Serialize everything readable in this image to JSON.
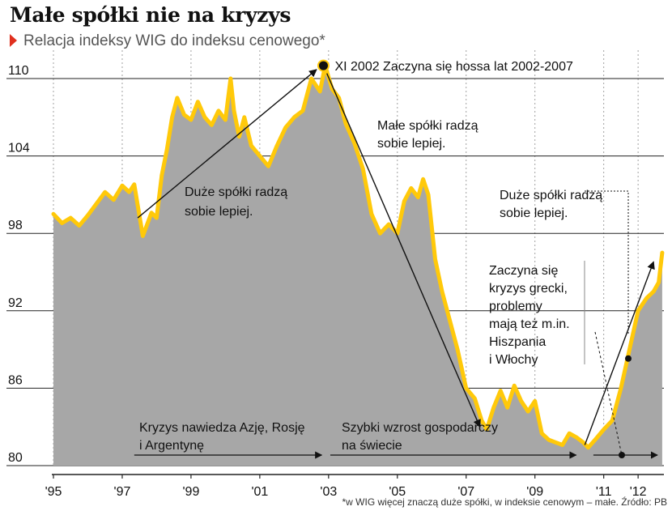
{
  "title": "Małe spółki nie na kryzys",
  "subtitle": "Relacja indeksy WIG do indeksu cenowego*",
  "footnote": "*w WIG więcej znaczą duże spółki, w indeksie cenowym – małe. Źródło: PB",
  "colors": {
    "line": "#ffc90a",
    "area": "#a7a7a7",
    "grid": "#a0a0a0",
    "text": "#111111",
    "accent": "#e0301e"
  },
  "chart_data": {
    "type": "area",
    "title": "Małe spółki nie na kryzys",
    "subtitle": "Relacja indeksy WIG do indeksu cenowego*",
    "xlabel": "",
    "ylabel": "",
    "ylim": [
      80,
      112
    ],
    "xlim": [
      1995,
      2012.75
    ],
    "y_ticks": [
      80,
      86,
      92,
      98,
      104,
      110
    ],
    "x_ticks": [
      {
        "value": 1995,
        "label": "'95"
      },
      {
        "value": 1997,
        "label": "'97"
      },
      {
        "value": 1999,
        "label": "'99"
      },
      {
        "value": 2001,
        "label": "'01"
      },
      {
        "value": 2003,
        "label": "'03"
      },
      {
        "value": 2005,
        "label": "'05"
      },
      {
        "value": 2007,
        "label": "'07"
      },
      {
        "value": 2009,
        "label": "'09"
      },
      {
        "value": 2011,
        "label": "'11"
      },
      {
        "value": 2012,
        "label": "'12"
      }
    ],
    "grid": "vertical dashed",
    "series": [
      {
        "x": [
          1995.0,
          1995.25,
          1995.5,
          1995.75,
          1996.0,
          1996.25,
          1996.5,
          1996.75,
          1997.0,
          1997.2,
          1997.35,
          1997.6,
          1997.85,
          1998.0,
          1998.15,
          1998.3,
          1998.45,
          1998.6,
          1998.8,
          1999.0,
          1999.2,
          1999.4,
          1999.6,
          1999.8,
          2000.0,
          2000.15,
          2000.25,
          2000.4,
          2000.55,
          2000.75,
          2001.0,
          2001.25,
          2001.5,
          2001.75,
          2002.0,
          2002.25,
          2002.5,
          2002.75,
          2002.9,
          2003.1,
          2003.3,
          2003.5,
          2003.75,
          2004.0,
          2004.25,
          2004.5,
          2004.75,
          2005.0,
          2005.2,
          2005.4,
          2005.6,
          2005.75,
          2005.9,
          2006.1,
          2006.3,
          2006.5,
          2006.75,
          2007.0,
          2007.25,
          2007.45,
          2007.6,
          2007.8,
          2008.0,
          2008.2,
          2008.4,
          2008.6,
          2008.8,
          2009.0,
          2009.2,
          2009.4,
          2009.6,
          2009.8,
          2010.0,
          2010.2,
          2010.4,
          2010.55,
          2010.75,
          2011.0,
          2011.25,
          2011.5,
          2011.75,
          2012.0,
          2012.25,
          2012.45,
          2012.6,
          2012.7
        ],
        "values": [
          99.5,
          98.8,
          99.2,
          98.6,
          99.4,
          100.3,
          101.2,
          100.6,
          101.7,
          101.2,
          101.8,
          97.8,
          99.6,
          99.2,
          102.5,
          104.5,
          107.0,
          108.5,
          107.2,
          106.8,
          108.2,
          107.0,
          106.4,
          107.5,
          106.8,
          110.0,
          107.5,
          105.5,
          107.0,
          104.8,
          104.0,
          103.2,
          104.8,
          106.2,
          107.0,
          107.5,
          110.0,
          109.0,
          111.0,
          109.2,
          108.5,
          106.5,
          105.0,
          103.0,
          99.5,
          98.0,
          98.7,
          98.0,
          100.5,
          101.5,
          100.8,
          102.2,
          101.0,
          96.0,
          93.5,
          91.5,
          89.0,
          86.0,
          85.2,
          83.5,
          82.8,
          84.5,
          85.8,
          84.5,
          86.2,
          85.0,
          84.2,
          85.0,
          82.5,
          82.0,
          81.8,
          81.6,
          82.5,
          82.2,
          81.8,
          81.4,
          82.0,
          82.8,
          83.5,
          86.0,
          89.0,
          92.0,
          93.0,
          93.5,
          94.2,
          96.5
        ]
      }
    ],
    "annotations": [
      {
        "text": "XI 2002 Zaczyna się hossa lat 2002-2007",
        "x": 2002.85,
        "y": 111.0
      },
      {
        "text": "Małe spółki radzą sobie lepiej.",
        "arrow_from": [
          2002.85,
          111.0
        ],
        "arrow_to": [
          2007.4,
          83.0
        ]
      },
      {
        "text": "Duże spółki radzą sobie lepiej.",
        "arrow_from": [
          1997.45,
          99.2
        ],
        "arrow_to": [
          2002.65,
          110.7
        ]
      },
      {
        "text": "Duże spółki radzą sobie lepiej.",
        "arrow_from": [
          2010.45,
          81.6
        ],
        "arrow_to": [
          2012.45,
          95.8
        ]
      },
      {
        "text": "Zaczyna się kryzys grecki, problemy mają też m.in. Hiszpania i Włochy"
      },
      {
        "text": "Kryzys nawiedza Azję, Rosję i Argentynę",
        "span": [
          1997.35,
          2002.85
        ]
      },
      {
        "text": "Szybki wzrost gospodarczy na świecie",
        "span": [
          2003.0,
          2010.0
        ]
      }
    ],
    "labels": {
      "peak": "XI 2002 Zaczyna się hossa lat 2002-2007",
      "small_better": [
        "Małe spółki radzą",
        "sobie lepiej."
      ],
      "big_better_1": [
        "Duże spółki radzą",
        "sobie lepiej."
      ],
      "big_better_2": [
        "Duże spółki radzą",
        "sobie lepiej."
      ],
      "greece": [
        "Zaczyna się",
        "kryzys grecki,",
        "problemy",
        "mają też m.in.",
        "Hiszpania",
        "i Włochy"
      ],
      "asia": [
        "Kryzys nawiedza Azję, Rosję",
        "i Argentynę"
      ],
      "growth": [
        "Szybki wzrost gospodarczy",
        "na świecie"
      ]
    }
  }
}
